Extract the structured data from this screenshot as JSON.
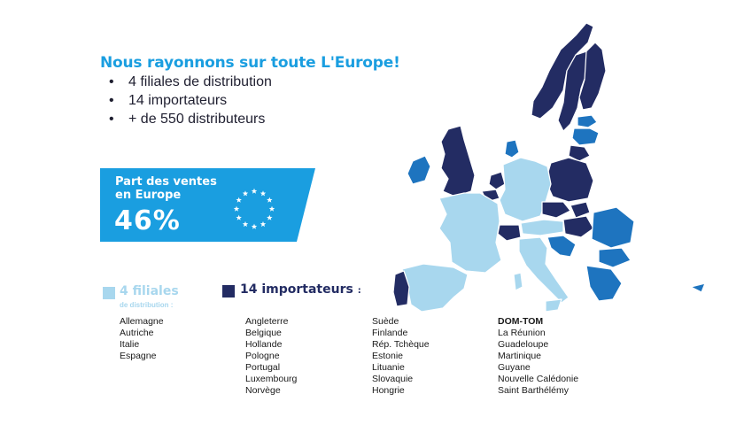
{
  "headline": "Nous rayonnons sur toute L'Europe!",
  "bullets": [
    "4 filiales de distribution",
    "14 importateurs",
    "+ de 550 distributeurs"
  ],
  "sales_box": {
    "label_line1": "Part des ventes",
    "label_line2": "en Europe",
    "value": "46%"
  },
  "legend": {
    "filiales": {
      "title": "4 filiales",
      "subtitle": "de distribution :",
      "color": "#a8d7ee"
    },
    "importateurs": {
      "title": "14 importateurs",
      "suffix": ":",
      "color": "#232c63"
    }
  },
  "lists": {
    "filiales": [
      "Allemagne",
      "Autriche",
      "Italie",
      "Espagne"
    ],
    "importateurs_col1": [
      "Angleterre",
      "Belgique",
      "Hollande",
      "Pologne",
      "Portugal",
      "Luxembourg",
      "Norvège"
    ],
    "importateurs_col2": [
      "Suède",
      "Finlande",
      "Rép. Tchèque",
      "Estonie",
      "Lituanie",
      "Slovaquie",
      "Hongrie"
    ],
    "domtom_header": "DOM-TOM",
    "domtom": [
      "La Réunion",
      "Guadeloupe",
      "Martinique",
      "Guyane",
      "Nouvelle Calédonie",
      "Saint Barthélémy"
    ]
  },
  "map_colors": {
    "filiales": "#a8d7ee",
    "importateurs": "#232c63",
    "distributeurs": "#1e74bf",
    "border": "#ffffff"
  }
}
